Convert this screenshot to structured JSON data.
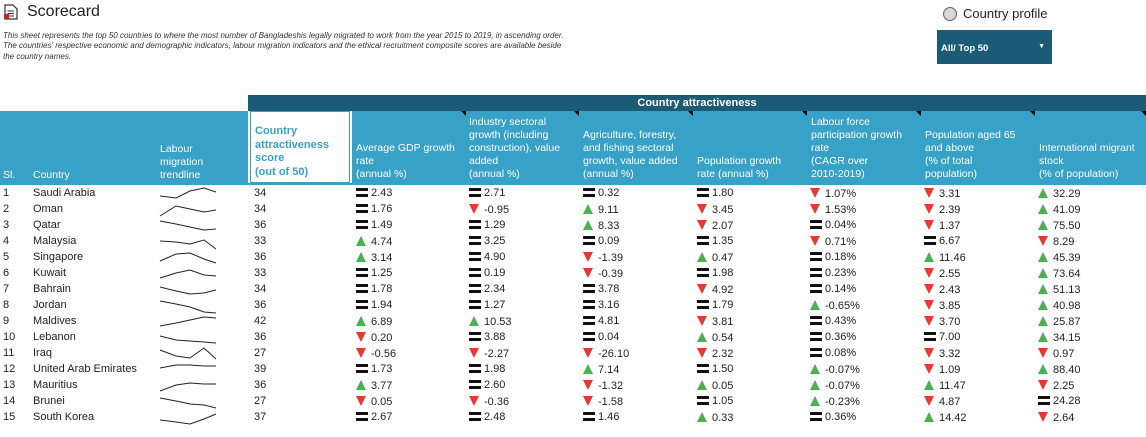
{
  "header": {
    "title": "Scorecard",
    "description": "This sheet represents the top 50 countries to where the most number of Bangladeshis legally migrated to work from the year 2015 to 2019, in ascending order. The countries' respective economic and demographic indicators, labour migration indicators and the ethical recruitment composite scores are available beside the country names.",
    "radio_label": "Country profile",
    "select_value": "All/ Top 50"
  },
  "table": {
    "group_header": "Country attractiveness",
    "col_sl": "Sl.",
    "col_country": "Country",
    "col_trend": [
      "Labour",
      "migration",
      "trendline"
    ],
    "col_score": [
      "Country",
      "attractiveness",
      "score",
      "(out of 50)"
    ],
    "col_gdp": [
      "Average GDP growth",
      "rate",
      "(annual %)"
    ],
    "col_industry": [
      "Industry sectoral",
      "growth (including",
      "construction), value",
      "added",
      "(annual %)"
    ],
    "col_agri": [
      "Agriculture, forestry,",
      "and fishing sectoral",
      "growth, value added",
      "(annual %)"
    ],
    "col_pop": [
      "Population growth",
      "rate (annual %)"
    ],
    "col_labour": [
      "Labour force",
      "participation growth",
      "rate",
      "(CAGR over",
      "2010-2019)"
    ],
    "col_aged": [
      "Population aged 65",
      "and above",
      "(% of total",
      "population)"
    ],
    "col_migrant": [
      "International migrant",
      "stock",
      "(% of population)"
    ],
    "colors": {
      "header_dark": "#1b5b76",
      "header_light": "#37a1c7",
      "up": "#4caf50",
      "down": "#e53935",
      "flat": "#111111"
    },
    "rows": [
      {
        "sl": "1",
        "country": "Saudi Arabia",
        "score": "34",
        "gdp": [
          "eq",
          "2.43"
        ],
        "ind": [
          "eq",
          "2.71"
        ],
        "agri": [
          "eq",
          "0.32"
        ],
        "pop": [
          "eq",
          "1.80"
        ],
        "lab": [
          "down",
          "1.07%"
        ],
        "aged": [
          "down",
          "3.31"
        ],
        "mig": [
          "up",
          "32.29"
        ]
      },
      {
        "sl": "2",
        "country": "Oman",
        "score": "34",
        "gdp": [
          "eq",
          "1.76"
        ],
        "ind": [
          "down",
          "-0.95"
        ],
        "agri": [
          "up",
          "9.11"
        ],
        "pop": [
          "down",
          "3.45"
        ],
        "lab": [
          "down",
          "1.53%"
        ],
        "aged": [
          "down",
          "2.39"
        ],
        "mig": [
          "up",
          "41.09"
        ]
      },
      {
        "sl": "3",
        "country": "Qatar",
        "score": "36",
        "gdp": [
          "eq",
          "1.49"
        ],
        "ind": [
          "eq",
          "1.29"
        ],
        "agri": [
          "up",
          "8.33"
        ],
        "pop": [
          "down",
          "2.07"
        ],
        "lab": [
          "eq",
          "0.04%"
        ],
        "aged": [
          "down",
          "1.37"
        ],
        "mig": [
          "up",
          "75.50"
        ]
      },
      {
        "sl": "4",
        "country": "Malaysia",
        "score": "33",
        "gdp": [
          "up",
          "4.74"
        ],
        "ind": [
          "eq",
          "3.25"
        ],
        "agri": [
          "eq",
          "0.09"
        ],
        "pop": [
          "eq",
          "1.35"
        ],
        "lab": [
          "down",
          "0.71%"
        ],
        "aged": [
          "eq",
          "6.67"
        ],
        "mig": [
          "down",
          "8.29"
        ]
      },
      {
        "sl": "5",
        "country": "Singapore",
        "score": "36",
        "gdp": [
          "up",
          "3.14"
        ],
        "ind": [
          "eq",
          "4.90"
        ],
        "agri": [
          "down",
          "-1.39"
        ],
        "pop": [
          "up",
          "0.47"
        ],
        "lab": [
          "eq",
          "0.18%"
        ],
        "aged": [
          "up",
          "11.46"
        ],
        "mig": [
          "up",
          "45.39"
        ]
      },
      {
        "sl": "6",
        "country": "Kuwait",
        "score": "33",
        "gdp": [
          "eq",
          "1.25"
        ],
        "ind": [
          "eq",
          "0.19"
        ],
        "agri": [
          "down",
          "-0.39"
        ],
        "pop": [
          "eq",
          "1.98"
        ],
        "lab": [
          "eq",
          "0.23%"
        ],
        "aged": [
          "down",
          "2.55"
        ],
        "mig": [
          "up",
          "73.64"
        ]
      },
      {
        "sl": "7",
        "country": "Bahrain",
        "score": "34",
        "gdp": [
          "eq",
          "1.78"
        ],
        "ind": [
          "eq",
          "2.34"
        ],
        "agri": [
          "eq",
          "3.78"
        ],
        "pop": [
          "down",
          "4.92"
        ],
        "lab": [
          "eq",
          "0.14%"
        ],
        "aged": [
          "down",
          "2.43"
        ],
        "mig": [
          "up",
          "51.13"
        ]
      },
      {
        "sl": "8",
        "country": "Jordan",
        "score": "36",
        "gdp": [
          "eq",
          "1.94"
        ],
        "ind": [
          "eq",
          "1.27"
        ],
        "agri": [
          "eq",
          "3.16"
        ],
        "pop": [
          "eq",
          "1.79"
        ],
        "lab": [
          "up",
          "-0.65%"
        ],
        "aged": [
          "down",
          "3.85"
        ],
        "mig": [
          "up",
          "40.98"
        ]
      },
      {
        "sl": "9",
        "country": "Maldives",
        "score": "42",
        "gdp": [
          "up",
          "6.89"
        ],
        "ind": [
          "up",
          "10.53"
        ],
        "agri": [
          "eq",
          "4.81"
        ],
        "pop": [
          "down",
          "3.81"
        ],
        "lab": [
          "eq",
          "0.43%"
        ],
        "aged": [
          "down",
          "3.70"
        ],
        "mig": [
          "up",
          "25.87"
        ]
      },
      {
        "sl": "10",
        "country": "Lebanon",
        "score": "36",
        "gdp": [
          "down",
          "0.20"
        ],
        "ind": [
          "eq",
          "3.88"
        ],
        "agri": [
          "eq",
          "0.04"
        ],
        "pop": [
          "up",
          "0.54"
        ],
        "lab": [
          "eq",
          "0.36%"
        ],
        "aged": [
          "eq",
          "7.00"
        ],
        "mig": [
          "up",
          "34.15"
        ]
      },
      {
        "sl": "11",
        "country": "Iraq",
        "score": "27",
        "gdp": [
          "down",
          "-0.56"
        ],
        "ind": [
          "down",
          "-2.27"
        ],
        "agri": [
          "down",
          "-26.10"
        ],
        "pop": [
          "down",
          "2.32"
        ],
        "lab": [
          "eq",
          "0.08%"
        ],
        "aged": [
          "down",
          "3.32"
        ],
        "mig": [
          "down",
          "0.97"
        ]
      },
      {
        "sl": "12",
        "country": "United Arab Emirates",
        "score": "39",
        "gdp": [
          "eq",
          "1.73"
        ],
        "ind": [
          "eq",
          "1.98"
        ],
        "agri": [
          "up",
          "7.14"
        ],
        "pop": [
          "eq",
          "1.50"
        ],
        "lab": [
          "up",
          "-0.07%"
        ],
        "aged": [
          "down",
          "1.09"
        ],
        "mig": [
          "up",
          "88.40"
        ]
      },
      {
        "sl": "13",
        "country": "Mauritius",
        "score": "36",
        "gdp": [
          "up",
          "3.77"
        ],
        "ind": [
          "eq",
          "2.60"
        ],
        "agri": [
          "down",
          "-1.32"
        ],
        "pop": [
          "up",
          "0.05"
        ],
        "lab": [
          "up",
          "-0.07%"
        ],
        "aged": [
          "up",
          "11.47"
        ],
        "mig": [
          "down",
          "2.25"
        ]
      },
      {
        "sl": "14",
        "country": "Brunei",
        "score": "27",
        "gdp": [
          "down",
          "0.05"
        ],
        "ind": [
          "down",
          "-0.36"
        ],
        "agri": [
          "down",
          "-1.58"
        ],
        "pop": [
          "eq",
          "1.05"
        ],
        "lab": [
          "up",
          "-0.23%"
        ],
        "aged": [
          "down",
          "4.87"
        ],
        "mig": [
          "eq",
          "24.28"
        ]
      },
      {
        "sl": "15",
        "country": "South Korea",
        "score": "37",
        "gdp": [
          "eq",
          "2.67"
        ],
        "ind": [
          "eq",
          "2.48"
        ],
        "agri": [
          "eq",
          "1.46"
        ],
        "pop": [
          "up",
          "0.33"
        ],
        "lab": [
          "eq",
          "0.36%"
        ],
        "aged": [
          "up",
          "14.42"
        ],
        "mig": [
          "down",
          "2.64"
        ]
      }
    ],
    "spark_lines": [
      "M2 10 L18 12 L32 5 L46 2 L58 6",
      "M2 14 L18 4 L32 7 L46 10 L58 8",
      "M2 3 L18 6 L32 9 L46 12 L58 11",
      "M2 7 L18 8 L32 10 L46 6 L58 15",
      "M2 11 L18 4 L32 3 L46 9 L58 13",
      "M2 12 L18 7 L32 4 L46 9 L58 10",
      "M2 5 L18 9 L32 12 L46 11 L58 8",
      "M2 3 L18 6 L32 9 L46 14 L58 15",
      "M2 12 L18 9 L32 6 L46 3 L58 4",
      "M2 6 L18 10 L32 11 L46 12 L58 13",
      "M2 4 L18 10 L32 12 L46 2 L58 13",
      "M2 6 L18 3 L32 3 L46 4 L58 4",
      "M2 13 L18 7 L32 5 L46 6 L58 6",
      "M2 4 L18 7 L32 10 L46 11 L58 14",
      "M2 10 L18 12 L32 14 L46 9 L58 4"
    ]
  }
}
